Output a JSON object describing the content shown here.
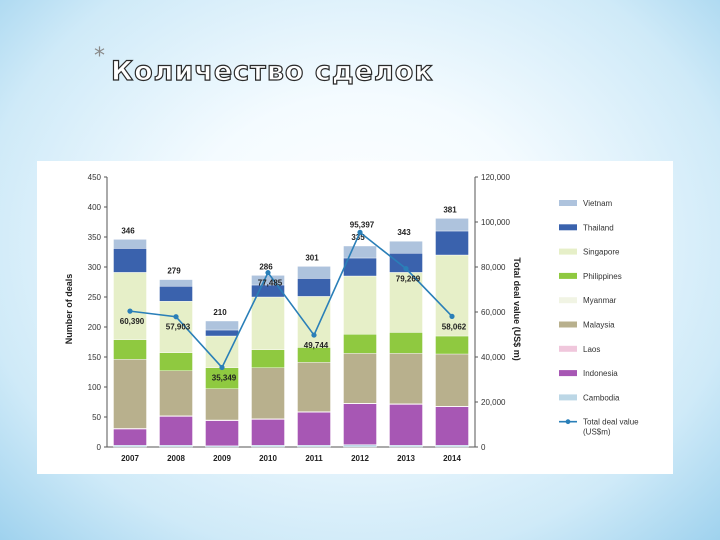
{
  "slide": {
    "marker": "*",
    "title": "Количество сделок"
  },
  "colors": {
    "Vietnam": "#aec3dd",
    "Thailand": "#3a62ad",
    "Singapore": "#e6efc8",
    "Philippines": "#8fc940",
    "Myanmar": "#f1f4e4",
    "Malaysia": "#b8b08d",
    "Laos": "#f0c7dc",
    "Indonesia": "#a757b4",
    "Cambodia": "#bcd7e6",
    "line": "#2a7fb8"
  },
  "chart_data": {
    "type": "bar",
    "stacked": true,
    "categories": [
      "2007",
      "2008",
      "2009",
      "2010",
      "2011",
      "2012",
      "2013",
      "2014"
    ],
    "series": [
      {
        "name": "Cambodia",
        "values": [
          3,
          3,
          2,
          3,
          3,
          4,
          3,
          3
        ]
      },
      {
        "name": "Indonesia",
        "values": [
          27,
          48,
          42,
          43,
          55,
          68,
          68,
          64
        ]
      },
      {
        "name": "Laos",
        "values": [
          1,
          1,
          1,
          1,
          1,
          1,
          1,
          1
        ]
      },
      {
        "name": "Malaysia",
        "values": [
          115,
          75,
          52,
          85,
          82,
          83,
          84,
          87
        ]
      },
      {
        "name": "Myanmar",
        "values": [
          0,
          0,
          0,
          0,
          0,
          0,
          0,
          0
        ]
      },
      {
        "name": "Philippines",
        "values": [
          33,
          30,
          35,
          30,
          25,
          32,
          35,
          30
        ]
      },
      {
        "name": "Singapore",
        "values": [
          112,
          86,
          53,
          88,
          85,
          97,
          100,
          135
        ]
      },
      {
        "name": "Thailand",
        "values": [
          40,
          25,
          10,
          20,
          30,
          30,
          32,
          40
        ]
      },
      {
        "name": "Vietnam",
        "values": [
          15,
          11,
          15,
          16,
          20,
          20,
          20,
          21
        ]
      }
    ],
    "totals": [
      346,
      279,
      210,
      286,
      301,
      335,
      343,
      381
    ],
    "line": {
      "name": "Total deal value (US$m)",
      "values": [
        60390,
        57903,
        35349,
        77485,
        49744,
        95397,
        79269,
        58062
      ],
      "labels": [
        "60,390",
        "57,903",
        "35,349",
        "77,485",
        "49,744",
        "95,397",
        "79,269",
        "58,062"
      ]
    },
    "ylabel": "Number of deals",
    "y2label": "Total deal value (US$ m)",
    "ylim": [
      0,
      450
    ],
    "y2lim": [
      0,
      120000
    ],
    "yticks": [
      "0",
      "50",
      "100",
      "150",
      "200",
      "250",
      "300",
      "350",
      "400",
      "450"
    ],
    "y2ticks": [
      "0",
      "20,000",
      "40,000",
      "60,000",
      "80,000",
      "100,000",
      "120,000"
    ],
    "legend": {
      "placement": "right",
      "items": [
        "Vietnam",
        "Thailand",
        "Singapore",
        "Philippines",
        "Myanmar",
        "Malaysia",
        "Laos",
        "Indonesia",
        "Cambodia",
        "Total deal value\n(US$m)"
      ]
    },
    "grid": false
  }
}
